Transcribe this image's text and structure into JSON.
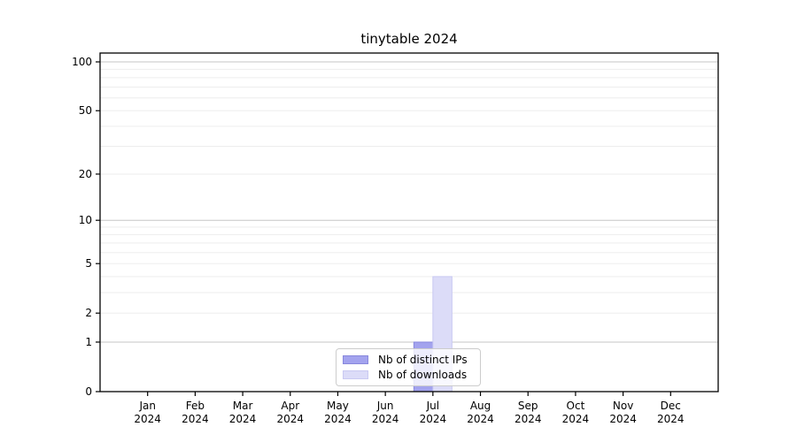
{
  "chart_data": {
    "type": "bar",
    "title": "tinytable 2024",
    "year_line": "2024",
    "categories": [
      "Jan",
      "Feb",
      "Mar",
      "Apr",
      "May",
      "Jun",
      "Jul",
      "Aug",
      "Sep",
      "Oct",
      "Nov",
      "Dec"
    ],
    "series": [
      {
        "name": "Nb of distinct IPs",
        "color": "#a3a3ee",
        "edge_color": "#8888dd",
        "values": [
          0,
          0,
          0,
          0,
          0,
          0,
          1,
          0,
          0,
          0,
          0,
          0
        ]
      },
      {
        "name": "Nb of downloads",
        "color": "#dcdcf8",
        "edge_color": "#c9c9f2",
        "values": [
          0,
          0,
          0,
          0,
          0,
          0,
          4,
          0,
          0,
          0,
          0,
          0
        ]
      }
    ],
    "y_scale": "log10(1+x)",
    "ylim": [
      0,
      113
    ],
    "ytick_values": [
      0,
      1,
      2,
      5,
      10,
      20,
      50,
      100
    ],
    "ytick_labels": [
      "0",
      "1",
      "2",
      "5",
      "10",
      "20",
      "50",
      "100"
    ],
    "grid_major_values": [
      1,
      10,
      100
    ],
    "grid_minor_values": [
      2,
      3,
      4,
      5,
      6,
      7,
      8,
      9,
      20,
      30,
      40,
      50,
      60,
      70,
      80,
      90
    ],
    "xlabel": "",
    "ylabel": "",
    "legend_position": "lower center",
    "colors": {
      "grid_major": "#c6c6c6",
      "grid_minor": "#ededed",
      "axis": "#000000",
      "legend_border": "#cccccc",
      "legend_bg": "rgba(255,255,255,0.8)",
      "text": "#000000",
      "background": "#ffffff"
    }
  }
}
